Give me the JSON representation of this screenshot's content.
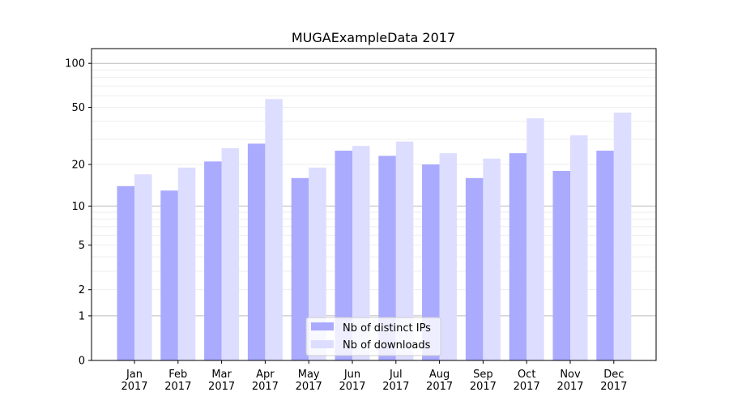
{
  "chart_data": {
    "type": "bar",
    "title": "MUGAExampleData 2017",
    "xlabel": "",
    "ylabel": "",
    "y_scale": "log10(y+1)",
    "ylim": [
      0,
      126
    ],
    "yticks": [
      0,
      1,
      2,
      5,
      10,
      20,
      50,
      100
    ],
    "grid": true,
    "legend_position": "bottom-center",
    "categories": [
      "Jan\n2017",
      "Feb\n2017",
      "Mar\n2017",
      "Apr\n2017",
      "May\n2017",
      "Jun\n2017",
      "Jul\n2017",
      "Aug\n2017",
      "Sep\n2017",
      "Oct\n2017",
      "Nov\n2017",
      "Dec\n2017"
    ],
    "series": [
      {
        "name": "Nb of distinct IPs",
        "color": "#aaaaff",
        "values": [
          14,
          13,
          21,
          28,
          16,
          25,
          23,
          20,
          16,
          24,
          18,
          25
        ]
      },
      {
        "name": "Nb of downloads",
        "color": "#ddddff",
        "values": [
          17,
          19,
          26,
          57,
          19,
          27,
          29,
          24,
          22,
          42,
          32,
          46
        ]
      }
    ]
  }
}
